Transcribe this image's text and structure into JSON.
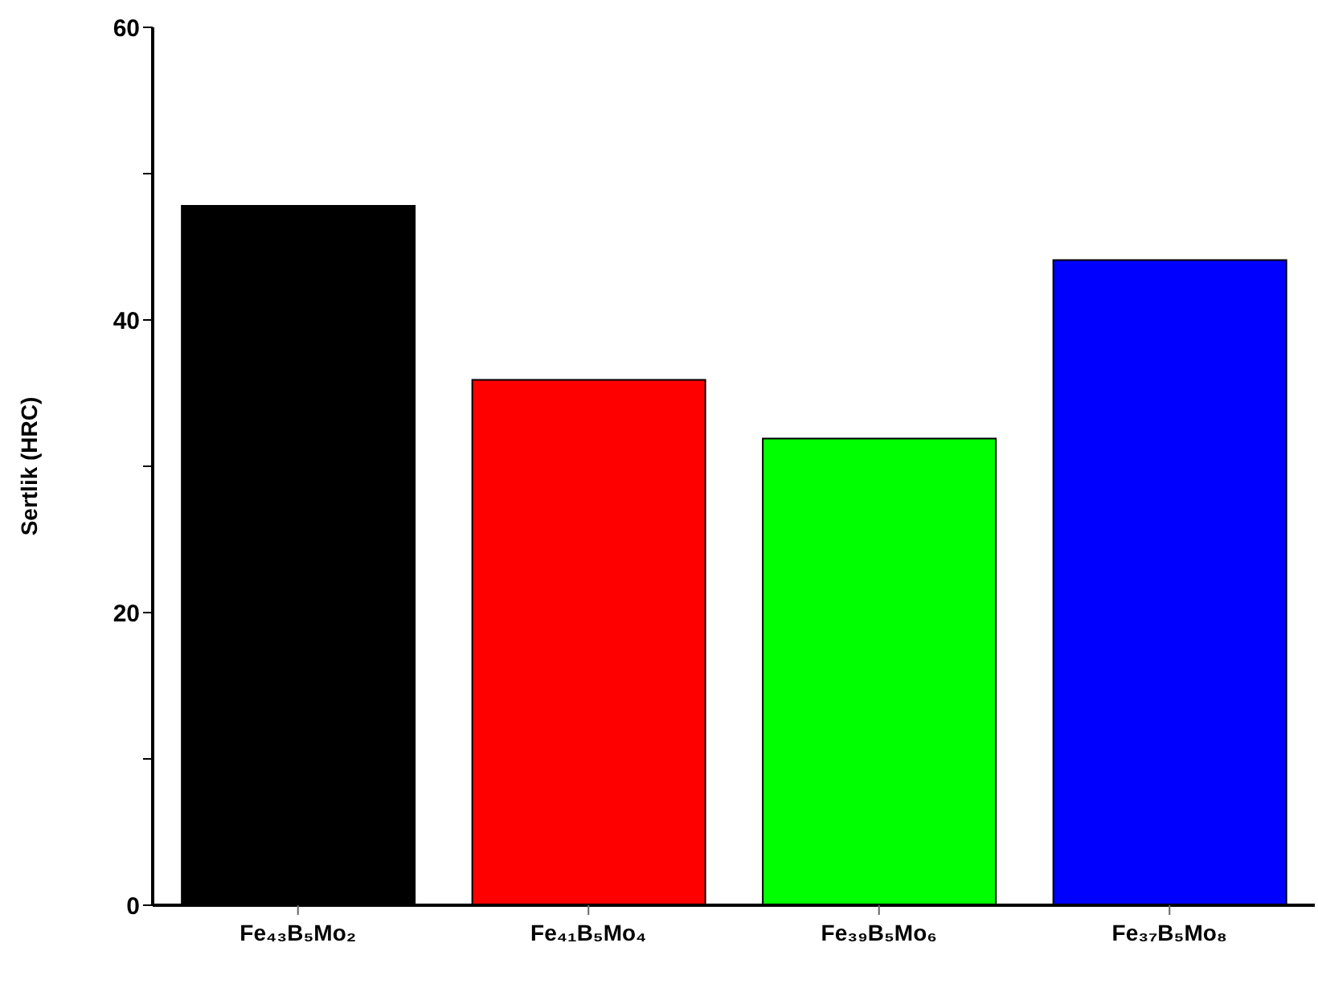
{
  "chart_data": {
    "type": "bar",
    "ylabel": "Sertlik (HRC)",
    "categories": [
      "Fe₄₃B₅Mo₂",
      "Fe₄₁B₅Mo₄",
      "Fe₃₉B₅Mo₆",
      "Fe₃₇B₅Mo₈"
    ],
    "values": [
      47.8,
      35.9,
      31.9,
      44.1
    ],
    "colors": [
      "#000000",
      "#ff0000",
      "#00ff00",
      "#0000ff"
    ],
    "ylim": [
      0,
      60
    ],
    "yticks": [
      0,
      {
        "value": 10,
        "label": null
      },
      20,
      {
        "value": 30,
        "label": null
      },
      40,
      {
        "value": 50,
        "label": null
      },
      60
    ],
    "grid": false,
    "legend": false
  }
}
